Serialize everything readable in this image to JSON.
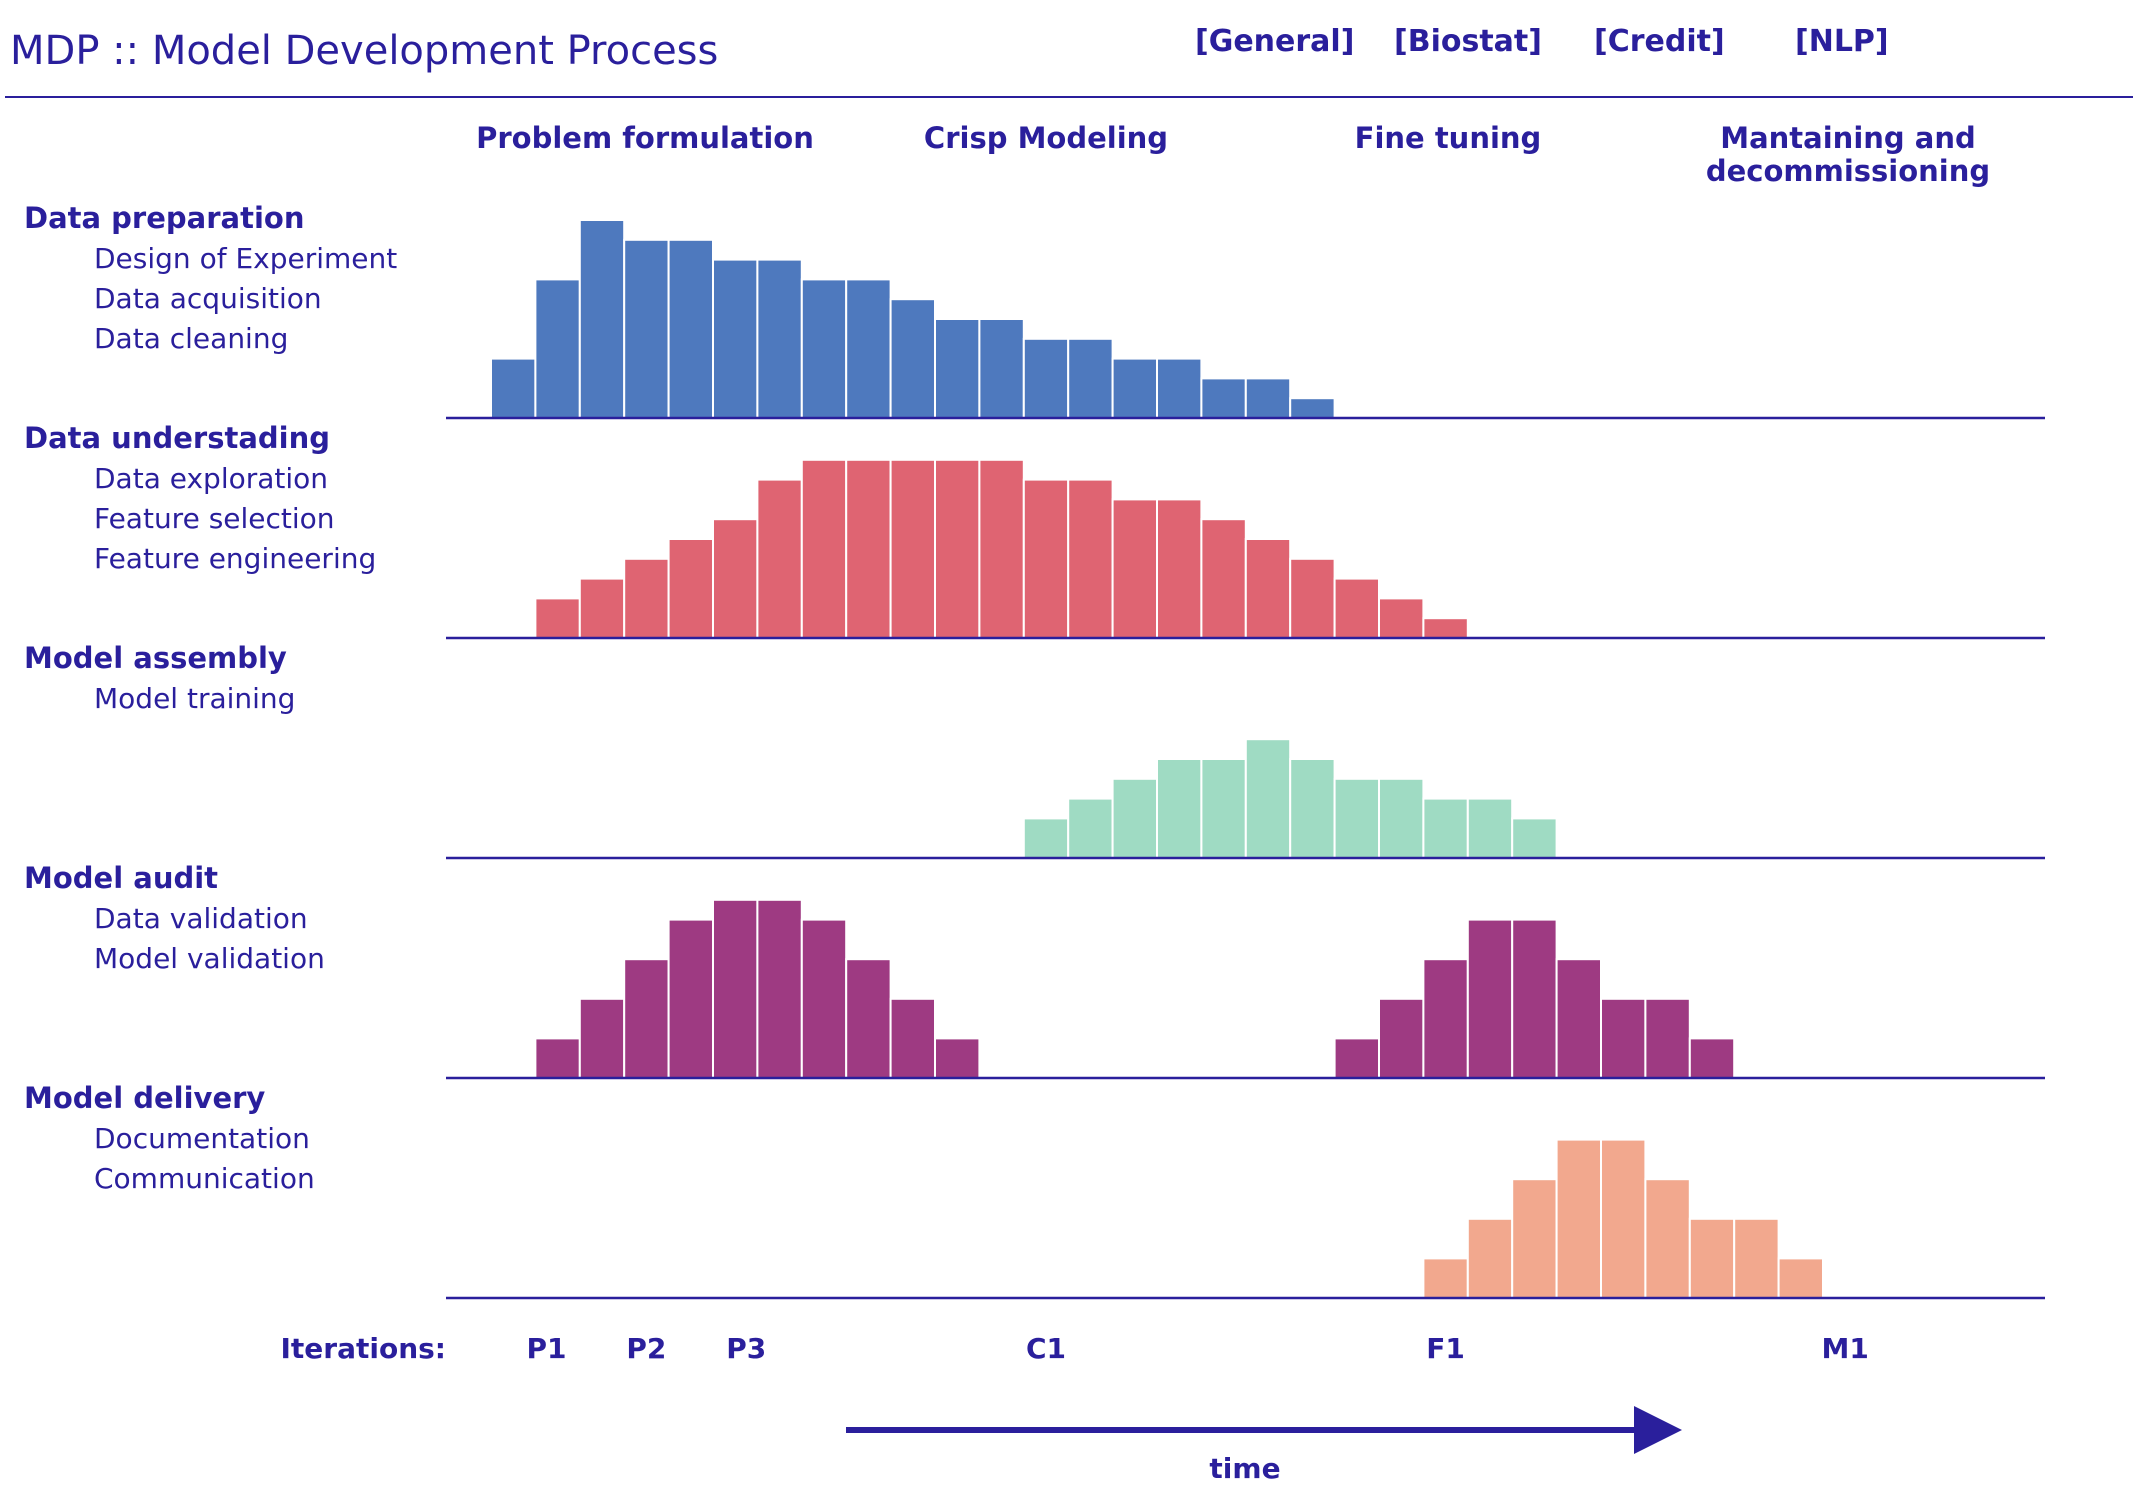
{
  "app": {
    "title": "MDP :: Model Development Process",
    "tabs": [
      "[General]",
      "[Biostat]",
      "[Credit]",
      "[NLP]"
    ]
  },
  "chart_data": {
    "type": "bar",
    "phases": [
      "Problem formulation",
      "Crisp Modeling",
      "Fine tuning",
      "Mantaining and decommissioning"
    ],
    "iterations_label": "Iterations:",
    "iteration_marks": [
      {
        "label": "P1",
        "at": 1.25
      },
      {
        "label": "P2",
        "at": 3.5
      },
      {
        "label": "P3",
        "at": 5.75
      },
      {
        "label": "C1",
        "at": 12.5
      },
      {
        "label": "F1",
        "at": 21.5
      },
      {
        "label": "M1",
        "at": 30.5
      }
    ],
    "time_label": "time",
    "x_range": [
      0,
      36
    ],
    "series": [
      {
        "name": "Data preparation",
        "items": [
          "Design of Experiment",
          "Data acquisition",
          "Data cleaning"
        ],
        "color": "#4e79be",
        "start": 1,
        "values": [
          3,
          7,
          10,
          9,
          9,
          8,
          8,
          7,
          7,
          6,
          5,
          5,
          4,
          4,
          3,
          3,
          2,
          2,
          1
        ]
      },
      {
        "name": "Data understading",
        "items": [
          "Data exploration",
          "Feature selection",
          "Feature engineering"
        ],
        "color": "#df6472",
        "start": 2,
        "values": [
          2,
          3,
          4,
          5,
          6,
          8,
          9,
          9,
          9,
          9,
          9,
          8,
          8,
          7,
          7,
          6,
          5,
          4,
          3,
          2,
          1
        ]
      },
      {
        "name": "Model assembly",
        "items": [
          "Model training"
        ],
        "color": "#9fdbc3",
        "start": 13,
        "values": [
          2,
          3,
          4,
          5,
          5,
          6,
          5,
          4,
          4,
          3,
          3,
          2
        ]
      },
      {
        "name": "Model audit",
        "items": [
          "Data validation",
          "Model validation"
        ],
        "color": "#9e3a82",
        "start": 2,
        "values": [
          2,
          4,
          6,
          8,
          9,
          9,
          8,
          6,
          4,
          2,
          0,
          0,
          0,
          0,
          0,
          0,
          0,
          0,
          2,
          4,
          6,
          8,
          8,
          6,
          4,
          4,
          2
        ]
      },
      {
        "name": "Model delivery",
        "items": [
          "Documentation",
          "Communication"
        ],
        "color": "#f2a88e",
        "start": 22,
        "values": [
          2,
          4,
          6,
          8,
          8,
          6,
          4,
          4,
          2
        ]
      }
    ],
    "ylim": [
      0,
      10
    ]
  }
}
